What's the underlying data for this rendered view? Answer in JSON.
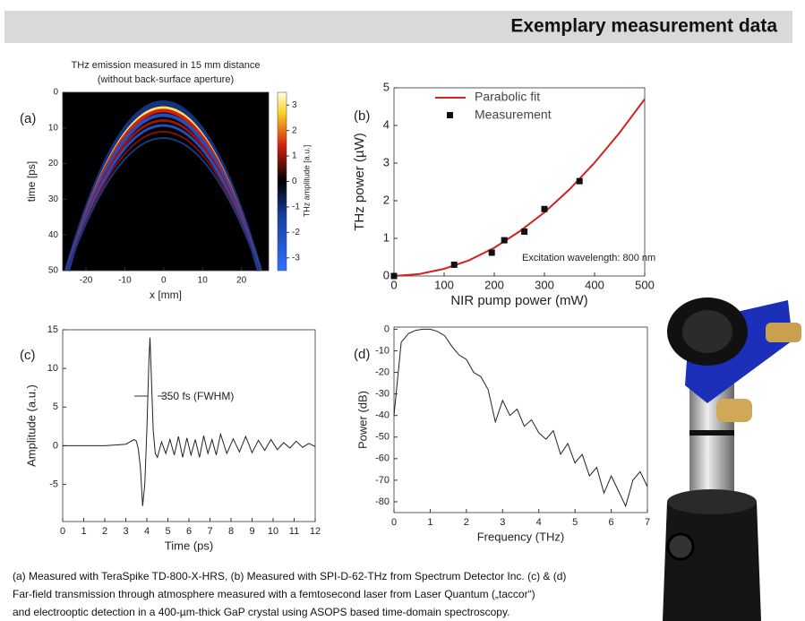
{
  "header": {
    "title": "Exemplary measurement data"
  },
  "caption": [
    "(a) Measured with TeraSpike TD-800-X-HRS, (b) Measured with SPI-D-62-THz from Spectrum Detector Inc. (c) & (d)",
    "Far-field transmission through atmosphere measured with a femtosecond laser from Laser Quantum („taccor“)",
    "and electrooptic detection in a 400-µm-thick GaP crystal using ASOPS based time-domain spectroscopy."
  ],
  "chart_data": [
    {
      "type": "heatmap",
      "panel": "(a)",
      "title_lines": [
        "THz emission measured in 15 mm distance",
        "(without back-surface aperture)"
      ],
      "xlabel": "x [mm]",
      "ylabel": "time [ps]",
      "xlim": [
        -26,
        27
      ],
      "xticks": [
        -20,
        -10,
        0,
        10,
        20
      ],
      "ylim": [
        0,
        50
      ],
      "yticks": [
        0,
        10,
        20,
        30,
        40,
        50
      ],
      "y_inverted": true,
      "colorbar_label": "THz amplitude [a.u.]",
      "clim": [
        -3.5,
        3.5
      ],
      "cticks": [
        -3,
        -2,
        -1,
        0,
        1,
        2,
        3
      ]
    },
    {
      "type": "scatter",
      "panel": "(b)",
      "xlabel": "NIR pump power (mW)",
      "ylabel": "THz power (µW)",
      "xlim": [
        0,
        500
      ],
      "xticks": [
        0,
        100,
        200,
        300,
        400,
        500
      ],
      "ylim": [
        0,
        5
      ],
      "yticks": [
        0,
        1,
        2,
        3,
        4,
        5
      ],
      "annotation": "Excitation wavelength: 800 nm",
      "legend": "upper left",
      "series": [
        {
          "name": "Parabolic fit",
          "color": "#d42020",
          "style": "line",
          "x": [
            0,
            50,
            100,
            150,
            200,
            250,
            300,
            350,
            400,
            450,
            500
          ],
          "values": [
            0,
            0.05,
            0.19,
            0.42,
            0.75,
            1.18,
            1.69,
            2.3,
            3.01,
            3.81,
            4.7
          ]
        },
        {
          "name": "Measurement",
          "color": "#111111",
          "style": "marker",
          "x": [
            0,
            120,
            195,
            220,
            260,
            300,
            370
          ],
          "values": [
            0,
            0.3,
            0.62,
            0.95,
            1.18,
            1.78,
            2.52
          ]
        }
      ]
    },
    {
      "type": "line",
      "panel": "(c)",
      "xlabel": "Time (ps)",
      "ylabel": "Amplitude (a.u.)",
      "xlim": [
        0,
        12
      ],
      "xticks": [
        0,
        1,
        2,
        3,
        4,
        5,
        6,
        7,
        8,
        9,
        10,
        11,
        12
      ],
      "ylim": [
        -9.8,
        15
      ],
      "yticks": [
        -5,
        0,
        5,
        10,
        15
      ],
      "annotation": "350 fs (FWHM)",
      "color": "#222222",
      "x": [
        0,
        0.5,
        1,
        1.5,
        2,
        2.5,
        3,
        3.2,
        3.4,
        3.5,
        3.6,
        3.7,
        3.8,
        3.9,
        4.0,
        4.1,
        4.15,
        4.2,
        4.3,
        4.4,
        4.5,
        4.7,
        4.9,
        5.1,
        5.3,
        5.5,
        5.7,
        5.9,
        6.1,
        6.3,
        6.5,
        6.7,
        6.9,
        7.1,
        7.3,
        7.5,
        7.8,
        8.1,
        8.4,
        8.7,
        9,
        9.3,
        9.6,
        9.9,
        10.2,
        10.5,
        10.8,
        11.1,
        11.4,
        11.7,
        12
      ],
      "values": [
        0,
        0,
        0,
        0,
        0,
        0.1,
        0.2,
        0.5,
        0.8,
        0.6,
        -0.5,
        -3,
        -7.8,
        -5,
        2,
        11,
        14,
        10,
        2,
        -1,
        -1.5,
        0.5,
        -1,
        0.8,
        -1.2,
        1.2,
        -1.5,
        1,
        -1.2,
        0.8,
        -1.5,
        1.3,
        -1,
        0.8,
        -1.2,
        1.5,
        -1,
        0.9,
        -0.8,
        1.2,
        -0.9,
        0.7,
        -0.6,
        0.8,
        -0.5,
        0.4,
        -0.3,
        0.6,
        -0.2,
        0.3,
        -0.1
      ]
    },
    {
      "type": "line",
      "panel": "(d)",
      "xlabel": "Frequency (THz)",
      "ylabel": "Power (dB)",
      "xlim": [
        0,
        7
      ],
      "xticks": [
        0,
        1,
        2,
        3,
        4,
        5,
        6,
        7
      ],
      "ylim": [
        -85,
        1
      ],
      "yticks": [
        -80,
        -70,
        -60,
        -50,
        -40,
        -30,
        -20,
        -10,
        0
      ],
      "color": "#222222",
      "x": [
        0,
        0.2,
        0.4,
        0.6,
        0.8,
        1,
        1.2,
        1.4,
        1.6,
        1.8,
        2,
        2.2,
        2.4,
        2.6,
        2.8,
        3,
        3.2,
        3.4,
        3.6,
        3.8,
        4,
        4.2,
        4.4,
        4.6,
        4.8,
        5,
        5.2,
        5.4,
        5.6,
        5.8,
        6,
        6.2,
        6.4,
        6.6,
        6.8,
        7
      ],
      "values": [
        -40,
        -6,
        -2,
        -0.5,
        0,
        0,
        -1,
        -3,
        -8,
        -12,
        -14,
        -20,
        -22,
        -28,
        -43,
        -33,
        -40,
        -37,
        -45,
        -42,
        -48,
        -51,
        -47,
        -58,
        -53,
        -62,
        -58,
        -68,
        -64,
        -76,
        -68,
        -75,
        -82,
        -70,
        -66,
        -73
      ]
    }
  ]
}
